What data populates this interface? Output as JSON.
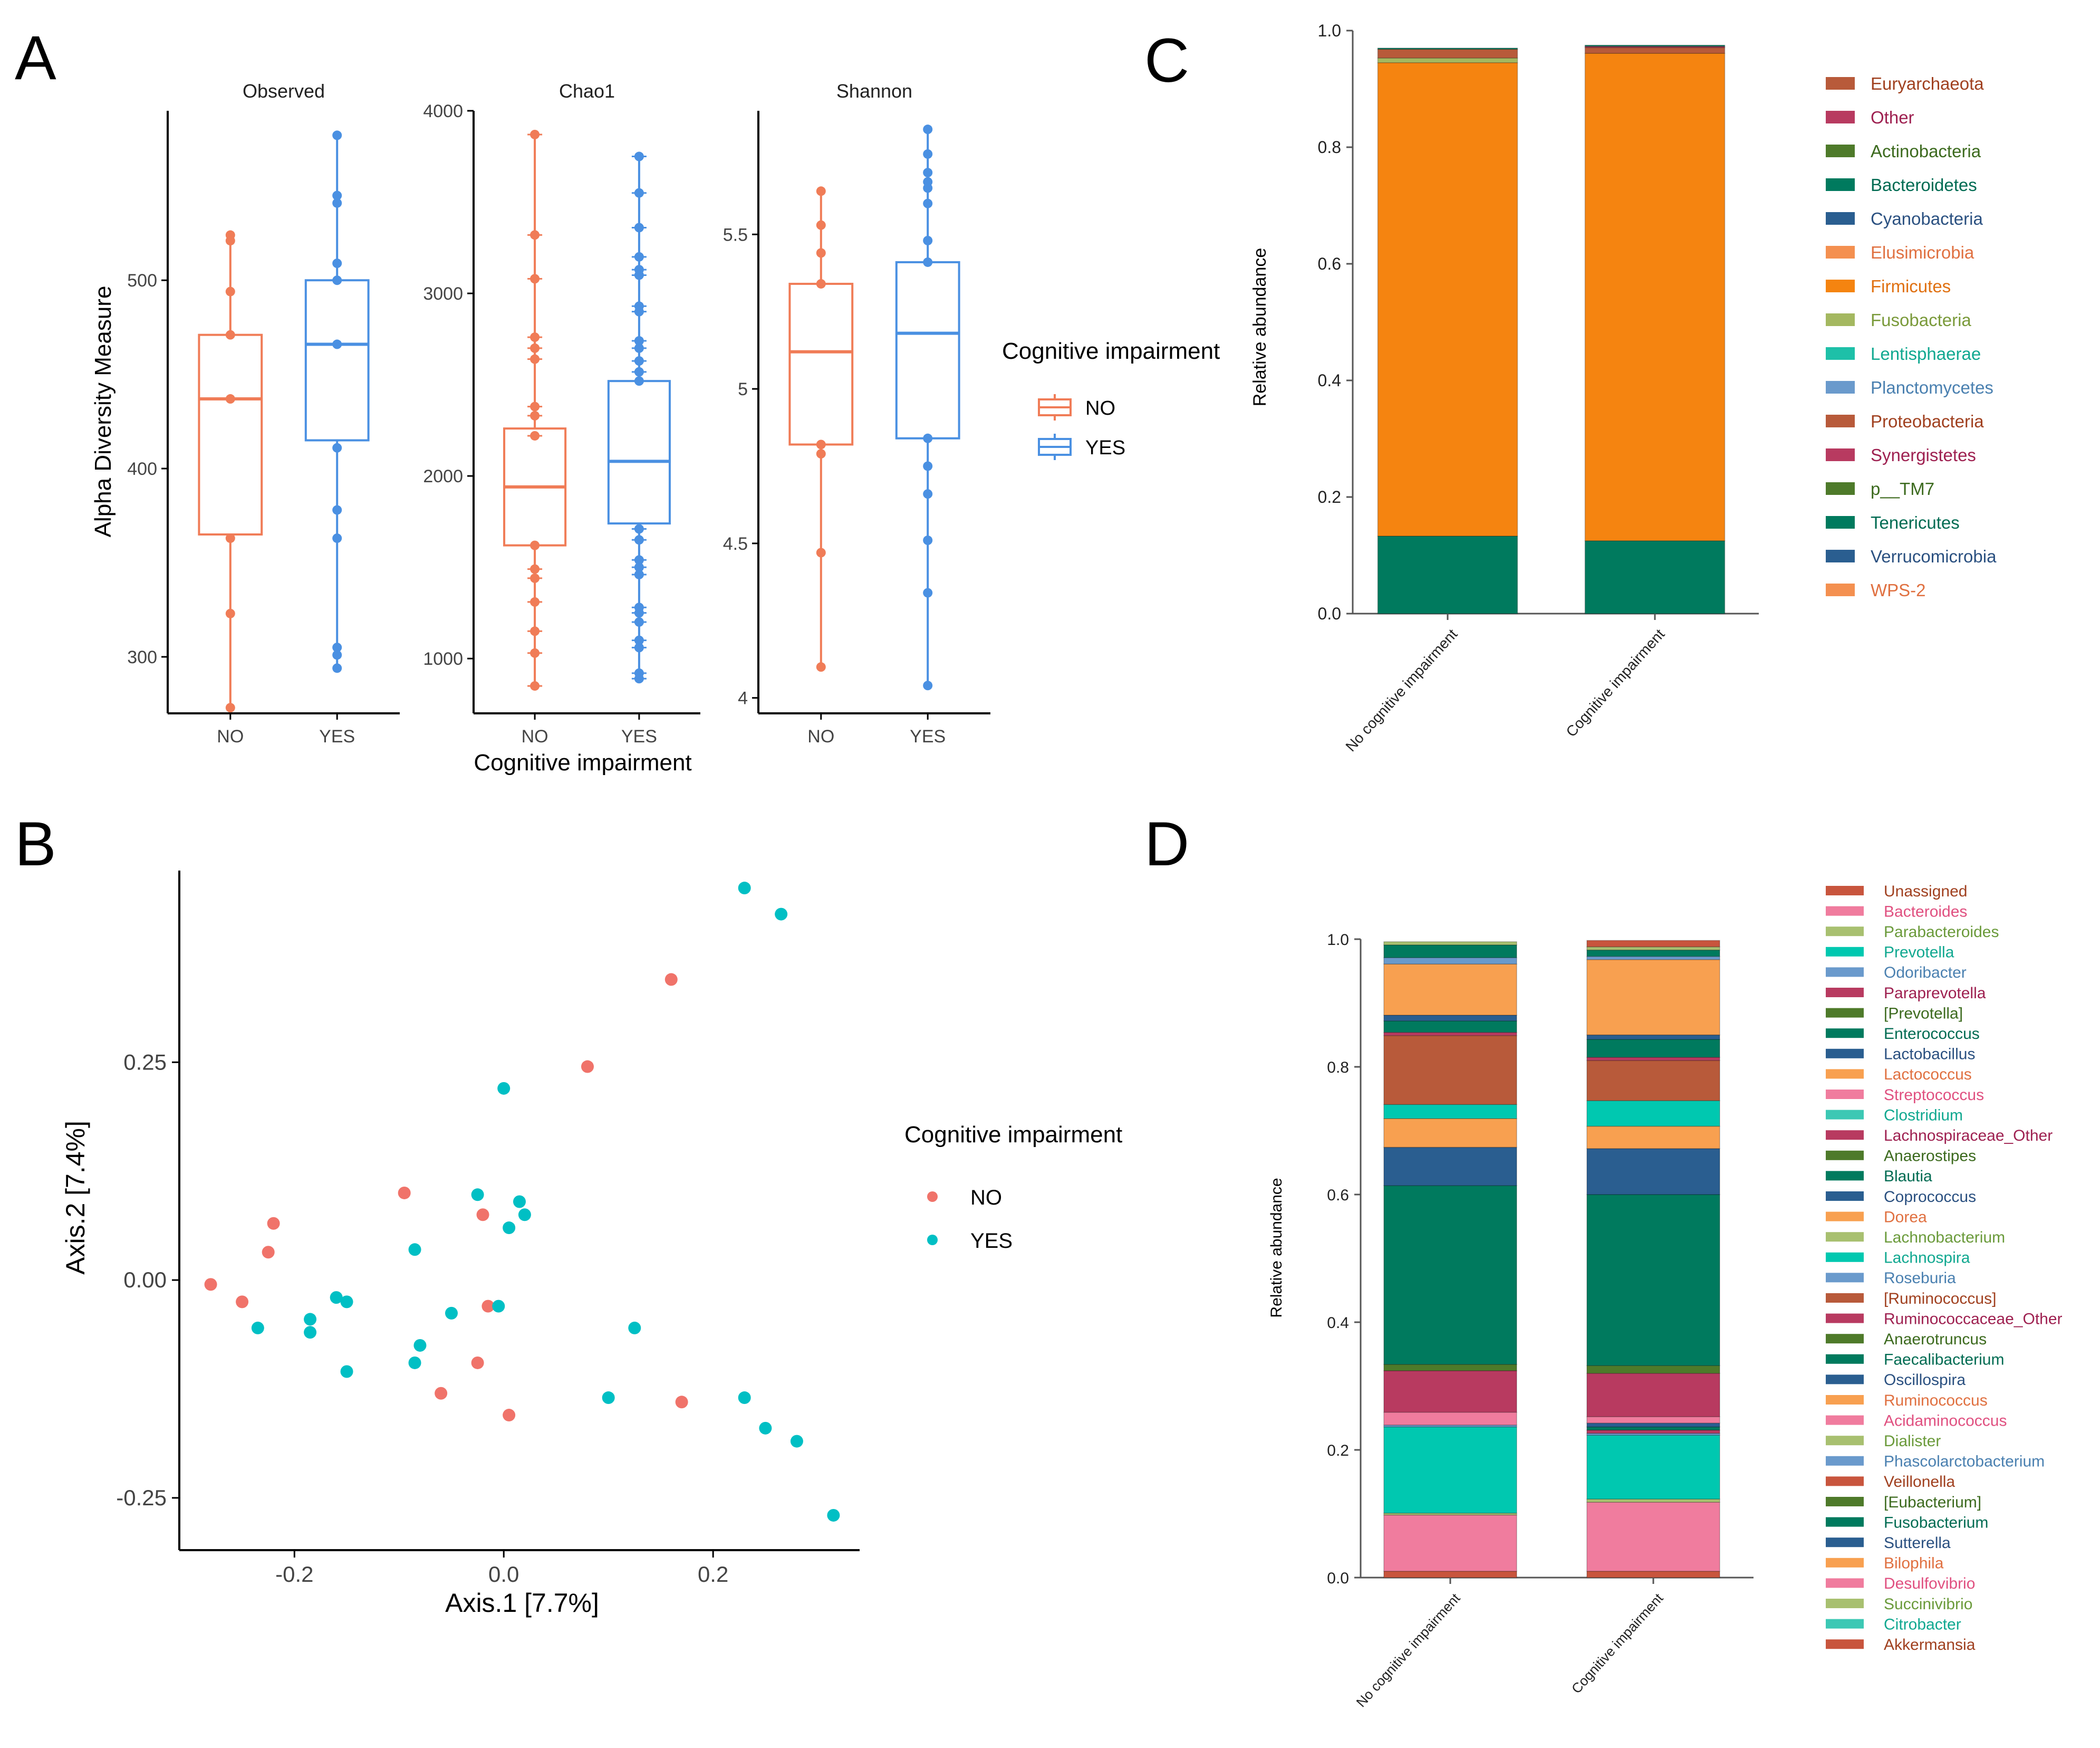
{
  "colors": {
    "no": "#F07C57",
    "yes": "#4A90E2",
    "pcoa_no": "#F0736A",
    "pcoa_yes": "#00BFC4",
    "axis": "#000000",
    "tick_text": "#444444"
  },
  "panels": {
    "A": "A",
    "B": "B",
    "C": "C",
    "D": "D"
  },
  "panelA": {
    "ylabel": "Alpha Diversity Measure",
    "xlabel": "Cognitive impairment",
    "legend_title": "Cognitive impairment",
    "legend_items": [
      "NO",
      "YES"
    ]
  },
  "panelB": {
    "xlabel": "Axis.1   [7.7%]",
    "ylabel": "Axis.2   [7.4%]",
    "legend_title": "Cognitive impairment",
    "legend_items": [
      "NO",
      "YES"
    ]
  },
  "panelC": {
    "ylabel": "Relative abundance"
  },
  "panelD": {
    "ylabel": "Relative abundance"
  },
  "chart_data": [
    {
      "type": "box",
      "panel": "A",
      "title": "Observed",
      "categories": [
        "NO",
        "YES"
      ],
      "ylim": [
        270,
        590
      ],
      "yticks": [
        300,
        400,
        500
      ],
      "ylabel": "Alpha Diversity Measure",
      "boxes": [
        {
          "group": "NO",
          "min": 273,
          "q1": 365,
          "median": 437,
          "q3": 471,
          "max": 525,
          "points": [
            273,
            323,
            363,
            437,
            471,
            494,
            521,
            524
          ]
        },
        {
          "group": "YES",
          "min": 294,
          "q1": 415,
          "median": 466,
          "q3": 500,
          "max": 577,
          "points": [
            294,
            301,
            305,
            363,
            378,
            411,
            466,
            500,
            509,
            541,
            545,
            577
          ]
        }
      ]
    },
    {
      "type": "box",
      "panel": "A",
      "title": "Chao1",
      "categories": [
        "NO",
        "YES"
      ],
      "ylim": [
        700,
        4000
      ],
      "yticks": [
        1000,
        2000,
        3000,
        4000
      ],
      "boxes": [
        {
          "group": "NO",
          "min": 850,
          "q1": 1620,
          "median": 1940,
          "q3": 2260,
          "max": 3870,
          "points": [
            850,
            1030,
            1150,
            1310,
            1440,
            1490,
            1620,
            2220,
            2330,
            2380,
            2640,
            2700,
            2760,
            3080,
            3320,
            3870
          ]
        },
        {
          "group": "YES",
          "min": 890,
          "q1": 1740,
          "median": 2080,
          "q3": 2520,
          "max": 3750,
          "points": [
            890,
            920,
            1060,
            1100,
            1200,
            1250,
            1280,
            1460,
            1500,
            1540,
            1650,
            1710,
            2520,
            2570,
            2630,
            2700,
            2740,
            2900,
            2930,
            3100,
            3130,
            3200,
            3360,
            3550,
            3750
          ]
        }
      ]
    },
    {
      "type": "box",
      "panel": "A",
      "title": "Shannon",
      "categories": [
        "NO",
        "YES"
      ],
      "ylim": [
        3.95,
        5.9
      ],
      "yticks": [
        4.0,
        4.5,
        5.0,
        5.5
      ],
      "boxes": [
        {
          "group": "NO",
          "min": 4.1,
          "q1": 4.82,
          "median": 5.12,
          "q3": 5.34,
          "max": 5.64,
          "points": [
            4.1,
            4.47,
            4.79,
            4.82,
            5.34,
            5.44,
            5.53,
            5.64
          ]
        },
        {
          "group": "YES",
          "min": 4.04,
          "q1": 4.84,
          "median": 5.18,
          "q3": 5.41,
          "max": 5.84,
          "points": [
            4.04,
            4.34,
            4.51,
            4.66,
            4.75,
            4.84,
            5.41,
            5.48,
            5.6,
            5.65,
            5.67,
            5.7,
            5.76,
            5.84
          ]
        }
      ]
    },
    {
      "type": "scatter",
      "panel": "B",
      "xlabel": "Axis.1   [7.7%]",
      "ylabel": "Axis.2   [7.4%]",
      "xlim": [
        -0.31,
        0.34
      ],
      "ylim": [
        -0.31,
        0.47
      ],
      "xticks": [
        -0.2,
        0.0,
        0.2
      ],
      "xtick_labels": [
        "-0.2",
        "0.0",
        "0.2"
      ],
      "yticks": [
        -0.25,
        0.0,
        0.25
      ],
      "ytick_labels": [
        "-0.25",
        "0.00",
        "0.25"
      ],
      "series": [
        {
          "name": "NO",
          "points": [
            [
              -0.28,
              -0.005
            ],
            [
              -0.25,
              -0.025
            ],
            [
              -0.22,
              0.065
            ],
            [
              -0.225,
              0.032
            ],
            [
              -0.095,
              0.1
            ],
            [
              -0.02,
              0.075
            ],
            [
              -0.015,
              -0.03
            ],
            [
              -0.025,
              -0.095
            ],
            [
              -0.06,
              -0.13
            ],
            [
              0.005,
              -0.155
            ],
            [
              0.08,
              0.245
            ],
            [
              0.16,
              0.345
            ],
            [
              0.17,
              -0.14
            ]
          ]
        },
        {
          "name": "YES",
          "points": [
            [
              -0.235,
              -0.055
            ],
            [
              -0.185,
              -0.045
            ],
            [
              -0.185,
              -0.06
            ],
            [
              -0.16,
              -0.02
            ],
            [
              -0.15,
              -0.025
            ],
            [
              -0.15,
              -0.105
            ],
            [
              -0.085,
              0.035
            ],
            [
              -0.08,
              -0.075
            ],
            [
              -0.085,
              -0.095
            ],
            [
              -0.05,
              -0.038
            ],
            [
              -0.025,
              0.098
            ],
            [
              -0.005,
              -0.03
            ],
            [
              0.0,
              0.22
            ],
            [
              0.005,
              0.06
            ],
            [
              0.015,
              0.09
            ],
            [
              0.02,
              0.075
            ],
            [
              0.1,
              -0.135
            ],
            [
              0.125,
              -0.055
            ],
            [
              0.23,
              0.45
            ],
            [
              0.265,
              0.42
            ],
            [
              0.23,
              -0.135
            ],
            [
              0.25,
              -0.17
            ],
            [
              0.28,
              -0.185
            ],
            [
              0.315,
              -0.27
            ]
          ]
        }
      ],
      "legend_title": "Cognitive impairment"
    },
    {
      "type": "bar",
      "stacked": true,
      "panel": "C",
      "ylabel": "Relative abundance",
      "ylim": [
        0,
        1.0
      ],
      "yticks": [
        0.0,
        0.2,
        0.4,
        0.6,
        0.8,
        1.0
      ],
      "ytick_labels": [
        "0.0",
        "0.2",
        "0.4",
        "0.6",
        "0.8",
        "1.0"
      ],
      "categories": [
        "No cognitive impairment",
        "Cognitive impairment"
      ],
      "series": [
        {
          "name": "Euryarchaeota",
          "color": "#B85A3A",
          "text_color": "#A0401F",
          "values": [
            0.0,
            0.0
          ]
        },
        {
          "name": "Other",
          "color": "#B83A60",
          "text_color": "#9E2050",
          "values": [
            0.0,
            0.0
          ]
        },
        {
          "name": "Actinobacteria",
          "color": "#4E7A2A",
          "text_color": "#3C6A1E",
          "values": [
            0.0,
            0.0
          ]
        },
        {
          "name": "Bacteroidetes",
          "color": "#007A5E",
          "text_color": "#006B52",
          "values": [
            0.133,
            0.125
          ]
        },
        {
          "name": "Cyanobacteria",
          "color": "#2A5E90",
          "text_color": "#2A5080",
          "values": [
            0.0,
            0.0
          ]
        },
        {
          "name": "Elusimicrobia",
          "color": "#F49050",
          "text_color": "#E07040",
          "values": [
            0.0,
            0.0
          ]
        },
        {
          "name": "Firmicutes",
          "color": "#F58410",
          "text_color": "#E07010",
          "values": [
            0.812,
            0.836
          ]
        },
        {
          "name": "Fusobacteria",
          "color": "#A4B860",
          "text_color": "#7A9A3A",
          "values": [
            0.008,
            0.0
          ]
        },
        {
          "name": "Lentisphaerae",
          "color": "#1EC0A8",
          "text_color": "#10A890",
          "values": [
            0.0,
            0.0
          ]
        },
        {
          "name": "Planctomycetes",
          "color": "#6A9ACC",
          "text_color": "#4A80B0",
          "values": [
            0.0,
            0.0
          ]
        },
        {
          "name": "Proteobacteria",
          "color": "#B85A3A",
          "text_color": "#A0401F",
          "values": [
            0.015,
            0.01
          ]
        },
        {
          "name": "Synergistetes",
          "color": "#B83A60",
          "text_color": "#9E2050",
          "values": [
            0.0,
            0.002
          ]
        },
        {
          "name": "p__TM7",
          "color": "#4E7A2A",
          "text_color": "#3C6A1E",
          "values": [
            0.0,
            0.0
          ]
        },
        {
          "name": "Tenericutes",
          "color": "#007A5E",
          "text_color": "#006B52",
          "values": [
            0.002,
            0.002
          ]
        },
        {
          "name": "Verrucomicrobia",
          "color": "#2A5E90",
          "text_color": "#2A5080",
          "values": [
            0.0,
            0.0
          ]
        },
        {
          "name": "WPS-2",
          "color": "#F49050",
          "text_color": "#E07040",
          "values": [
            0.0,
            0.0
          ]
        }
      ]
    },
    {
      "type": "bar",
      "stacked": true,
      "panel": "D",
      "ylabel": "Relative abundance",
      "ylim": [
        0,
        1.0
      ],
      "yticks": [
        0.0,
        0.2,
        0.4,
        0.6,
        0.8,
        1.0
      ],
      "ytick_labels": [
        "0.0",
        "0.2",
        "0.4",
        "0.6",
        "0.8",
        "1.0"
      ],
      "categories": [
        "No cognitive impairment",
        "Cognitive impairment"
      ],
      "series": [
        {
          "name": "Unassigned",
          "color": "#C8553D",
          "text_color": "#A0401F",
          "values": [
            0.01,
            0.01
          ]
        },
        {
          "name": "Bacteroides",
          "color": "#F07C9E",
          "text_color": "#E05080",
          "values": [
            0.088,
            0.108
          ]
        },
        {
          "name": "Parabacteroides",
          "color": "#A8C070",
          "text_color": "#6A9A3A",
          "values": [
            0.003,
            0.005
          ]
        },
        {
          "name": "Prevotella",
          "color": "#00C8B0",
          "text_color": "#10A890",
          "values": [
            0.135,
            0.1
          ]
        },
        {
          "name": "Odoribacter",
          "color": "#6A9ACC",
          "text_color": "#4A80B0",
          "values": [
            0.003,
            0.003
          ]
        },
        {
          "name": "Paraprevotella",
          "color": "#B83A60",
          "text_color": "#9E2050",
          "values": [
            0.0,
            0.005
          ]
        },
        {
          "name": "[Prevotella]",
          "color": "#4E7A2A",
          "text_color": "#3C6A1E",
          "values": [
            0.0,
            0.0
          ]
        },
        {
          "name": "Enterococcus",
          "color": "#007A5E",
          "text_color": "#006B52",
          "values": [
            0.0,
            0.005
          ]
        },
        {
          "name": "Lactobacillus",
          "color": "#2A5E90",
          "text_color": "#2A5080",
          "values": [
            0.0,
            0.006
          ]
        },
        {
          "name": "Lactococcus",
          "color": "#F8A050",
          "text_color": "#E07040",
          "values": [
            0.0,
            0.0
          ]
        },
        {
          "name": "Streptococcus",
          "color": "#F07C9E",
          "text_color": "#E05080",
          "values": [
            0.02,
            0.01
          ]
        },
        {
          "name": "Clostridium",
          "color": "#3CC8B4",
          "text_color": "#10A890",
          "values": [
            0.0,
            0.0
          ]
        },
        {
          "name": "Lachnospiraceae_Other",
          "color": "#B83A60",
          "text_color": "#9E2050",
          "values": [
            0.065,
            0.068
          ]
        },
        {
          "name": "Anaerostipes",
          "color": "#4E7A2A",
          "text_color": "#3C6A1E",
          "values": [
            0.01,
            0.012
          ]
        },
        {
          "name": "Blautia",
          "color": "#007A5E",
          "text_color": "#006B52",
          "values": [
            0.28,
            0.268
          ]
        },
        {
          "name": "Coprococcus",
          "color": "#2A5E90",
          "text_color": "#2A5080",
          "values": [
            0.06,
            0.072
          ]
        },
        {
          "name": "Dorea",
          "color": "#F8A050",
          "text_color": "#E07040",
          "values": [
            0.045,
            0.035
          ]
        },
        {
          "name": "Lachnobacterium",
          "color": "#A8C070",
          "text_color": "#6A9A3A",
          "values": [
            0.0,
            0.0
          ]
        },
        {
          "name": "Lachnospira",
          "color": "#00C8B0",
          "text_color": "#10A890",
          "values": [
            0.022,
            0.04
          ]
        },
        {
          "name": "Roseburia",
          "color": "#6A9ACC",
          "text_color": "#4A80B0",
          "values": [
            0.0,
            0.0
          ]
        },
        {
          "name": "[Ruminococcus]",
          "color": "#B85A3A",
          "text_color": "#A0401F",
          "values": [
            0.108,
            0.063
          ]
        },
        {
          "name": "Ruminococcaceae_Other",
          "color": "#B83A60",
          "text_color": "#9E2050",
          "values": [
            0.005,
            0.005
          ]
        },
        {
          "name": "Anaerotruncus",
          "color": "#4E7A2A",
          "text_color": "#3C6A1E",
          "values": [
            0.0,
            0.0
          ]
        },
        {
          "name": "Faecalibacterium",
          "color": "#007A5E",
          "text_color": "#006B52",
          "values": [
            0.018,
            0.028
          ]
        },
        {
          "name": "Oscillospira",
          "color": "#2A5E90",
          "text_color": "#2A5080",
          "values": [
            0.009,
            0.007
          ]
        },
        {
          "name": "Ruminococcus",
          "color": "#F8A050",
          "text_color": "#E07040",
          "values": [
            0.08,
            0.118
          ]
        },
        {
          "name": "Acidaminococcus",
          "color": "#F07C9E",
          "text_color": "#E05080",
          "values": [
            0.0,
            0.0
          ]
        },
        {
          "name": "Dialister",
          "color": "#A8C070",
          "text_color": "#6A9A3A",
          "values": [
            0.0,
            0.0
          ]
        },
        {
          "name": "Phascolarctobacterium",
          "color": "#6A9ACC",
          "text_color": "#4A80B0",
          "values": [
            0.01,
            0.005
          ]
        },
        {
          "name": "Veillonella",
          "color": "#C8553D",
          "text_color": "#A0401F",
          "values": [
            0.0,
            0.0
          ]
        },
        {
          "name": "[Eubacterium]",
          "color": "#4E7A2A",
          "text_color": "#3C6A1E",
          "values": [
            0.0,
            0.0
          ]
        },
        {
          "name": "Fusobacterium",
          "color": "#007A5E",
          "text_color": "#006B52",
          "values": [
            0.02,
            0.01
          ]
        },
        {
          "name": "Sutterella",
          "color": "#2A5E90",
          "text_color": "#2A5080",
          "values": [
            0.0,
            0.0
          ]
        },
        {
          "name": "Bilophila",
          "color": "#F8A050",
          "text_color": "#E07040",
          "values": [
            0.0,
            0.0
          ]
        },
        {
          "name": "Desulfovibrio",
          "color": "#F07C9E",
          "text_color": "#E05080",
          "values": [
            0.0,
            0.0
          ]
        },
        {
          "name": "Succinivibrio",
          "color": "#A8C070",
          "text_color": "#6A9A3A",
          "values": [
            0.005,
            0.005
          ]
        },
        {
          "name": "Citrobacter",
          "color": "#3CC8B4",
          "text_color": "#10A890",
          "values": [
            0.0,
            0.0
          ]
        },
        {
          "name": "Akkermansia",
          "color": "#C8553D",
          "text_color": "#A0401F",
          "values": [
            0.0,
            0.01
          ]
        }
      ]
    }
  ]
}
